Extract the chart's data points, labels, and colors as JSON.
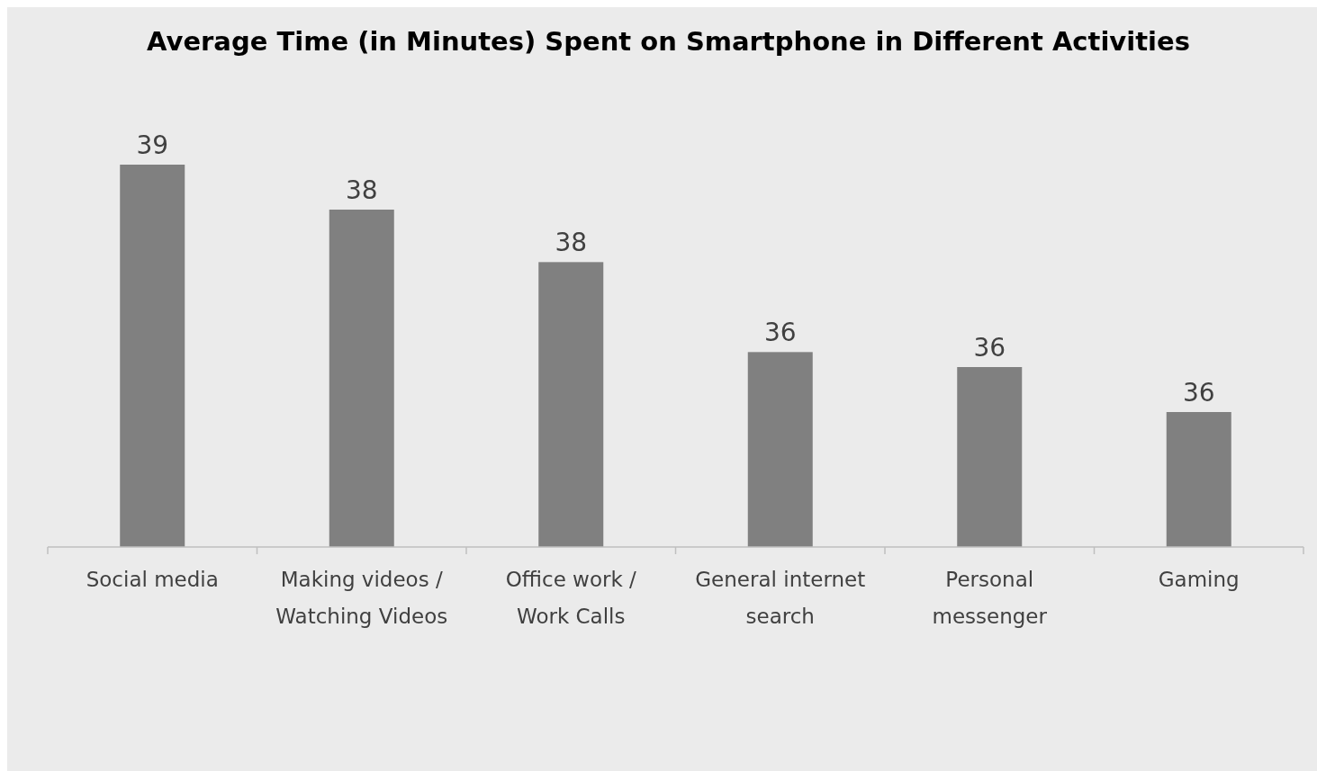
{
  "chart_data": {
    "type": "bar",
    "title": "Average Time (in Minutes) Spent on Smartphone in Different Activities",
    "categories": [
      "Social media",
      "Making videos / Watching Videos",
      "Office work / Work Calls",
      "General internet search",
      "Personal messenger",
      "Gaming"
    ],
    "values": [
      38.9,
      38.3,
      37.6,
      36.4,
      36.2,
      35.6
    ],
    "value_labels": [
      "39",
      "38",
      "38",
      "36",
      "36",
      "36"
    ],
    "ylim": [
      33.8,
      38.9
    ],
    "color": "#808080"
  }
}
